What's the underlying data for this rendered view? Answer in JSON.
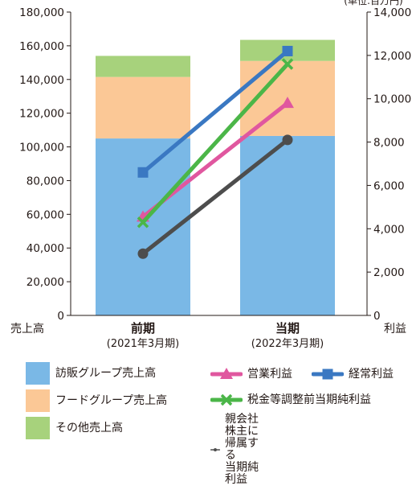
{
  "chart_data": {
    "type": "bar+line",
    "categories": [
      {
        "label": "前期",
        "sub": "(2021年3月期)"
      },
      {
        "label": "当期",
        "sub": "(2022年3月期)"
      }
    ],
    "left_axis": {
      "label": "売上高",
      "range": [
        0,
        180000
      ],
      "ticks": [
        "0",
        "20,000",
        "40,000",
        "60,000",
        "80,000",
        "100,000",
        "120,000",
        "140,000",
        "160,000",
        "180,000"
      ]
    },
    "right_axis": {
      "label": "利益",
      "unit_note": "(単位:百万円)",
      "range": [
        0,
        14000
      ],
      "ticks": [
        "0",
        "2,000",
        "4,000",
        "6,000",
        "8,000",
        "10,000",
        "12,000",
        "14,000"
      ]
    },
    "bar_series": [
      {
        "name": "訪販グループ売上高",
        "color": "#7ab8e6",
        "values": [
          105000,
          106500
        ]
      },
      {
        "name": "フードグループ売上高",
        "color": "#fbc896",
        "values": [
          36500,
          44500
        ]
      },
      {
        "name": "その他売上高",
        "color": "#a7d27c",
        "values": [
          12500,
          12500
        ]
      }
    ],
    "line_series": [
      {
        "name": "営業利益",
        "color": "#e0579f",
        "marker": "triangle",
        "values": [
          4550,
          9800
        ]
      },
      {
        "name": "経常利益",
        "color": "#3a78c2",
        "marker": "square",
        "values": [
          6600,
          12200
        ]
      },
      {
        "name": "税金等調整前当期純利益",
        "color": "#4bb648",
        "marker": "x",
        "values": [
          4300,
          11600
        ]
      },
      {
        "name": "親会社株主に帰属する\n当期純利益",
        "color": "#4d4d4d",
        "marker": "circle",
        "values": [
          2850,
          8100
        ]
      }
    ]
  }
}
